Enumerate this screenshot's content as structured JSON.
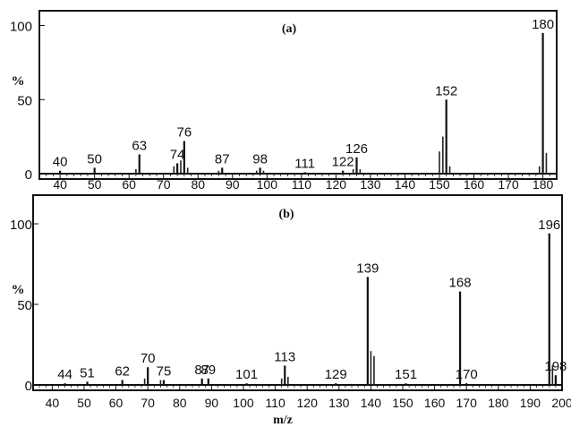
{
  "chart_data": [
    {
      "type": "bar",
      "title": "(a)",
      "ylabel": "%",
      "xlabel": "",
      "xlim": [
        34,
        184
      ],
      "ylim": [
        0,
        110
      ],
      "x_ticks": [
        40,
        50,
        60,
        70,
        80,
        90,
        100,
        110,
        120,
        130,
        140,
        150,
        160,
        170,
        180
      ],
      "y_ticks": [
        {
          "value": 0,
          "label": "0"
        },
        {
          "value": 50,
          "label": "50"
        },
        {
          "value": 100,
          "label": "100"
        }
      ],
      "peaks": [
        {
          "x": 40,
          "y": 2,
          "label": "40"
        },
        {
          "x": 50,
          "y": 4,
          "label": "50"
        },
        {
          "x": 63,
          "y": 13,
          "label": "63"
        },
        {
          "x": 74,
          "y": 7,
          "label": "74"
        },
        {
          "x": 76,
          "y": 22,
          "label": "76"
        },
        {
          "x": 87,
          "y": 4,
          "label": "87"
        },
        {
          "x": 98,
          "y": 4,
          "label": "98"
        },
        {
          "x": 111,
          "y": 1,
          "label": "111"
        },
        {
          "x": 122,
          "y": 2,
          "label": "122"
        },
        {
          "x": 126,
          "y": 11,
          "label": "126"
        },
        {
          "x": 152,
          "y": 50,
          "label": "152"
        },
        {
          "x": 180,
          "y": 95,
          "label": "180"
        }
      ],
      "minor_peaks": [
        {
          "x": 62,
          "y": 3
        },
        {
          "x": 73,
          "y": 5
        },
        {
          "x": 75,
          "y": 9
        },
        {
          "x": 77,
          "y": 4
        },
        {
          "x": 86,
          "y": 2
        },
        {
          "x": 97,
          "y": 2
        },
        {
          "x": 99,
          "y": 2
        },
        {
          "x": 125,
          "y": 3
        },
        {
          "x": 127,
          "y": 3
        },
        {
          "x": 150,
          "y": 15
        },
        {
          "x": 151,
          "y": 25
        },
        {
          "x": 153,
          "y": 5
        },
        {
          "x": 179,
          "y": 5
        },
        {
          "x": 181,
          "y": 14
        }
      ]
    },
    {
      "type": "bar",
      "title": "(b)",
      "ylabel": "%",
      "xlabel": "m/z",
      "xlim": [
        34,
        200
      ],
      "ylim": [
        0,
        110
      ],
      "x_ticks": [
        40,
        50,
        60,
        70,
        80,
        90,
        100,
        110,
        120,
        130,
        140,
        150,
        160,
        170,
        180,
        190,
        200
      ],
      "y_ticks": [
        {
          "value": 0,
          "label": "0"
        },
        {
          "value": 50,
          "label": "50"
        },
        {
          "value": 100,
          "label": "100"
        }
      ],
      "peaks": [
        {
          "x": 44,
          "y": 1,
          "label": "44"
        },
        {
          "x": 51,
          "y": 2,
          "label": "51"
        },
        {
          "x": 62,
          "y": 3,
          "label": "62"
        },
        {
          "x": 70,
          "y": 11,
          "label": "70"
        },
        {
          "x": 75,
          "y": 3,
          "label": "75"
        },
        {
          "x": 87,
          "y": 4,
          "label": "87"
        },
        {
          "x": 89,
          "y": 4,
          "label": "89"
        },
        {
          "x": 101,
          "y": 1,
          "label": "101"
        },
        {
          "x": 113,
          "y": 12,
          "label": "113"
        },
        {
          "x": 129,
          "y": 1,
          "label": "129"
        },
        {
          "x": 139,
          "y": 67,
          "label": "139"
        },
        {
          "x": 151,
          "y": 1,
          "label": "151"
        },
        {
          "x": 168,
          "y": 58,
          "label": "168"
        },
        {
          "x": 170,
          "y": 1,
          "label": "170"
        },
        {
          "x": 196,
          "y": 94,
          "label": "196"
        },
        {
          "x": 198,
          "y": 6,
          "label": "198"
        }
      ],
      "minor_peaks": [
        {
          "x": 69,
          "y": 4
        },
        {
          "x": 74,
          "y": 3
        },
        {
          "x": 112,
          "y": 4
        },
        {
          "x": 114,
          "y": 5
        },
        {
          "x": 140,
          "y": 21
        },
        {
          "x": 141,
          "y": 18
        },
        {
          "x": 197,
          "y": 12
        }
      ]
    }
  ]
}
